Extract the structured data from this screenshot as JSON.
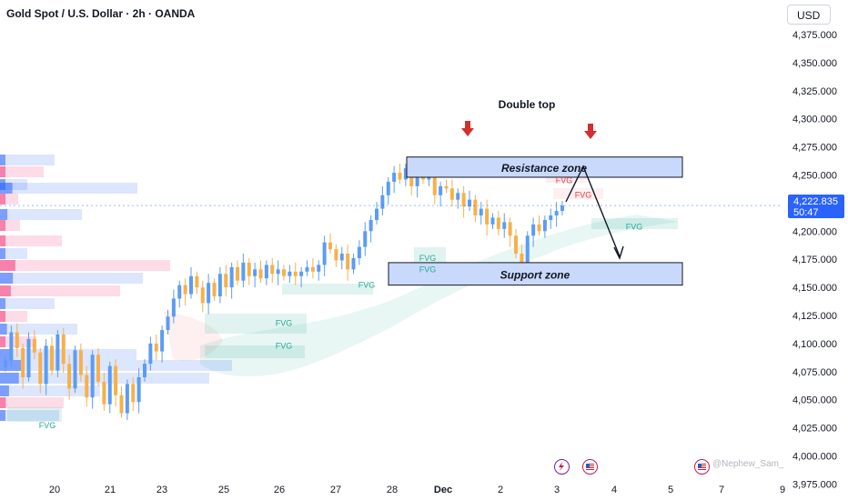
{
  "header": {
    "title": "Gold Spot / U.S. Dollar · 2h · OANDA",
    "currency": "USD"
  },
  "price_tag": {
    "price": "4,222.835",
    "countdown": "50:47"
  },
  "watermark": "@Nephew_Sam_",
  "colors": {
    "up": "#5b9cf5",
    "down": "#f7b04a",
    "zone_fill": "#c9d9fb",
    "arrow_red": "#d32f2f",
    "fvg_green": "#22ab94",
    "fvg_red": "#f23645",
    "price_line": "#2962ff"
  },
  "icons": [
    "lightning-event-icon",
    "us-flag-event-icon",
    "us-flag-event-icon"
  ],
  "chart_data": {
    "type": "candlestick",
    "title": "Gold Spot / U.S. Dollar · 2h · OANDA",
    "y_axis": {
      "ticks": [
        "4,375.000",
        "4,350.000",
        "4,325.000",
        "4,300.000",
        "4,275.000",
        "4,250.000",
        "4,225.000",
        "4,200.000",
        "4,175.000",
        "4,150.000",
        "4,125.000",
        "4,100.000",
        "4,075.000",
        "4,050.000",
        "4,025.000",
        "4,000.000",
        "3,975.000"
      ],
      "range": [
        3972,
        4385
      ]
    },
    "x_axis": {
      "ticks": [
        "20",
        "21",
        "23",
        "25",
        "26",
        "27",
        "28",
        "Dec",
        "2",
        "3",
        "4",
        "5",
        "7",
        "9"
      ]
    },
    "last_price": 4222.835,
    "candle_closes": [
      4085,
      4110,
      4096,
      4070,
      4104,
      4092,
      4064,
      4098,
      4076,
      4108,
      4082,
      4060,
      4094,
      4072,
      4052,
      4090,
      4066,
      4046,
      4080,
      4054,
      4038,
      4064,
      4048,
      4070,
      4082,
      4100,
      4093,
      4112,
      4124,
      4140,
      4152,
      4144,
      4160,
      4150,
      4136,
      4154,
      4142,
      4162,
      4150,
      4168,
      4156,
      4172,
      4160,
      4166,
      4158,
      4170,
      4162,
      4166,
      4160,
      4164,
      4160,
      4164,
      4168,
      4164,
      4170,
      4190,
      4184,
      4174,
      4180,
      4166,
      4176,
      4186,
      4200,
      4210,
      4220,
      4232,
      4244,
      4252,
      4246,
      4256,
      4240,
      4252,
      4246,
      4248,
      4232,
      4240,
      4238,
      4228,
      4234,
      4222,
      4228,
      4214,
      4220,
      4206,
      4212,
      4202,
      4208,
      4196,
      4180,
      4172,
      4196,
      4206,
      4200,
      4210,
      4214,
      4218,
      4222.835
    ],
    "annotations": {
      "pattern_label": "Double top",
      "resistance_label": "Resistance zone",
      "resistance_range": [
        4248,
        4266
      ],
      "support_label": "Support zone",
      "support_range": [
        4152,
        4172
      ],
      "fvg_labels": [
        {
          "text": "FVG",
          "x": "20",
          "y": 4027,
          "color": "green"
        },
        {
          "text": "FVG",
          "x": "25",
          "y": 4098,
          "color": "green"
        },
        {
          "text": "FVG",
          "x": "25",
          "y": 4118,
          "color": "green"
        },
        {
          "text": "FVG",
          "x": "27",
          "y": 4152,
          "color": "green"
        },
        {
          "text": "FVG",
          "x": "28",
          "y": 4176,
          "color": "green"
        },
        {
          "text": "FVG",
          "x": "28",
          "y": 4166,
          "color": "green"
        },
        {
          "text": "FVG",
          "x": "2",
          "y": 4245,
          "color": "red"
        },
        {
          "text": "FVG",
          "x": "3",
          "y": 4232,
          "color": "red"
        },
        {
          "text": "FVG",
          "x": "4",
          "y": 4204,
          "color": "green"
        }
      ]
    }
  }
}
